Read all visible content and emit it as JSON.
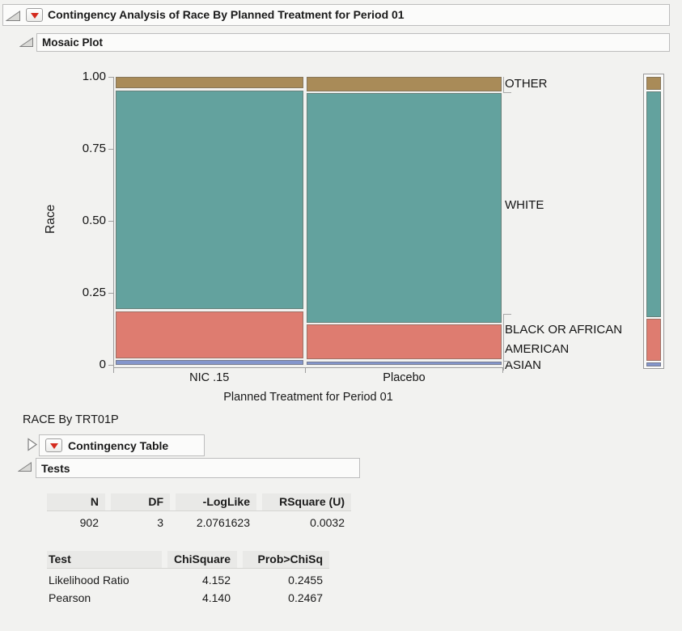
{
  "outline": {
    "title": "Contingency Analysis of Race By Planned Treatment for Period 01",
    "mosaic_title": "Mosaic Plot",
    "subtitle": "RACE By TRT01P",
    "contingency_title": "Contingency Table",
    "tests_title": "Tests"
  },
  "chart_data": {
    "type": "mosaic",
    "title": "Mosaic Plot",
    "xlabel": "Planned Treatment for Period 01",
    "ylabel": "Race",
    "x_categories": [
      "NIC .15",
      "Placebo"
    ],
    "column_shares": [
      0.49,
      0.51
    ],
    "y_ticks": [
      {
        "label": "1.00",
        "value": 1.0
      },
      {
        "label": "0.75",
        "value": 0.75
      },
      {
        "label": "0.50",
        "value": 0.5
      },
      {
        "label": "0.25",
        "value": 0.25
      },
      {
        "label": "0",
        "value": 0.0
      }
    ],
    "segments_order_bottom_up": [
      "ASIAN",
      "BLACK OR AFRICAN AMERICAN",
      "WHITE",
      "OTHER"
    ],
    "colors": {
      "ASIAN": "#8496CC",
      "BLACK OR AFRICAN AMERICAN": "#DE7C70",
      "WHITE": "#63A29E",
      "OTHER": "#A98B58"
    },
    "series": [
      {
        "name": "NIC .15",
        "proportions": [
          0.019,
          0.171,
          0.767,
          0.043
        ]
      },
      {
        "name": "Placebo",
        "proportions": [
          0.016,
          0.128,
          0.802,
          0.054
        ]
      }
    ],
    "overall_proportions": [
      0.017,
      0.15,
      0.785,
      0.048
    ],
    "right_labels": [
      "OTHER",
      "WHITE",
      "BLACK OR AFRICAN AMERICAN",
      "ASIAN"
    ],
    "axis_range": [
      0,
      1
    ],
    "legend_position": "right-of-plot"
  },
  "summary_table": {
    "headers": [
      "N",
      "DF",
      "-LogLike",
      "RSquare (U)"
    ],
    "rows": [
      [
        "902",
        "3",
        "2.0761623",
        "0.0032"
      ]
    ]
  },
  "tests_table": {
    "headers": [
      "Test",
      "ChiSquare",
      "Prob>ChiSq"
    ],
    "rows": [
      [
        "Likelihood Ratio",
        "4.152",
        "0.2455"
      ],
      [
        "Pearson",
        "4.140",
        "0.2467"
      ]
    ]
  }
}
